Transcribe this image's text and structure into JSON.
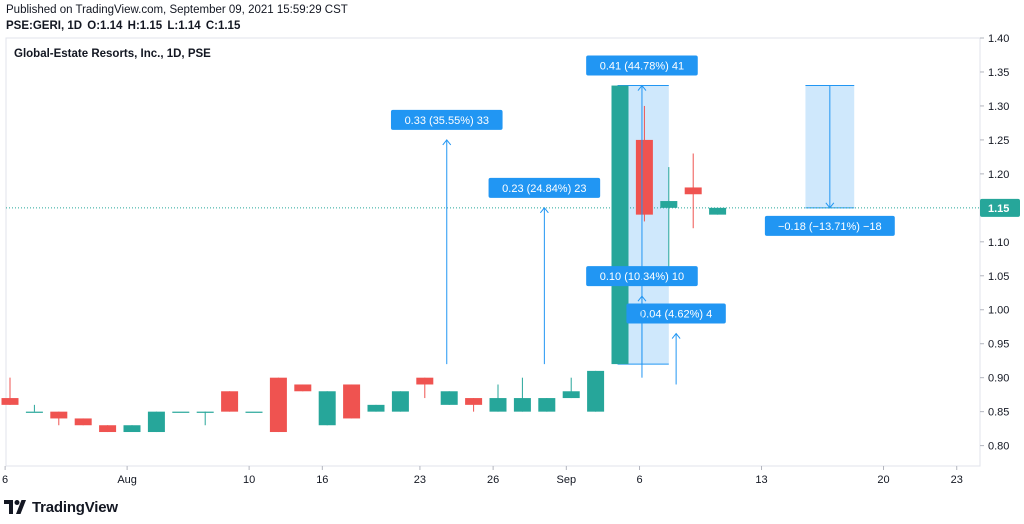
{
  "header": {
    "published": "Published on TradingView.com, September 09, 2021 15:59:29 CST",
    "symbol": "PSE:GERI, 1D",
    "o_label": "O:",
    "o_value": "1.14",
    "h_label": "H:",
    "h_value": "1.15",
    "l_label": "L:",
    "l_value": "1.14",
    "c_label": "C:",
    "c_value": "1.15"
  },
  "chart_data": {
    "type": "candlestick",
    "title": "Global-Estate Resorts, Inc., 1D, PSE",
    "colors": {
      "up": "#26a69a",
      "down": "#ef5350",
      "accent": "#2196f3",
      "range_fill": "#bbdefb",
      "price_line": "#26a69a"
    },
    "y_axis": {
      "ylim": [
        0.77,
        1.4
      ],
      "ticks": [
        "0.80",
        "0.85",
        "0.90",
        "0.95",
        "1.00",
        "1.05",
        "1.10",
        "1.15",
        "1.20",
        "1.25",
        "1.30",
        "1.35",
        "1.40"
      ],
      "position": "right"
    },
    "x_axis": {
      "ticks": [
        {
          "label": "6",
          "index": -0.2
        },
        {
          "label": "Aug",
          "index": 4.8
        },
        {
          "label": "10",
          "index": 9.8
        },
        {
          "label": "16",
          "index": 12.8
        },
        {
          "label": "23",
          "index": 16.8
        },
        {
          "label": "26",
          "index": 19.8
        },
        {
          "label": "Sep",
          "index": 22.8
        },
        {
          "label": "6",
          "index": 25.8
        },
        {
          "label": "13",
          "index": 30.8
        },
        {
          "label": "20",
          "index": 35.8
        },
        {
          "label": "23",
          "index": 38.8
        }
      ]
    },
    "last_price": "1.15",
    "candles": [
      {
        "o": 0.87,
        "h": 0.9,
        "l": 0.86,
        "c": 0.86
      },
      {
        "o": 0.85,
        "h": 0.86,
        "l": 0.85,
        "c": 0.85
      },
      {
        "o": 0.85,
        "h": 0.85,
        "l": 0.83,
        "c": 0.84
      },
      {
        "o": 0.84,
        "h": 0.84,
        "l": 0.83,
        "c": 0.83
      },
      {
        "o": 0.83,
        "h": 0.83,
        "l": 0.82,
        "c": 0.82
      },
      {
        "o": 0.82,
        "h": 0.83,
        "l": 0.82,
        "c": 0.83
      },
      {
        "o": 0.82,
        "h": 0.85,
        "l": 0.82,
        "c": 0.85
      },
      {
        "o": 0.85,
        "h": 0.85,
        "l": 0.85,
        "c": 0.85
      },
      {
        "o": 0.85,
        "h": 0.85,
        "l": 0.83,
        "c": 0.85
      },
      {
        "o": 0.88,
        "h": 0.88,
        "l": 0.85,
        "c": 0.85
      },
      {
        "o": 0.85,
        "h": 0.85,
        "l": 0.85,
        "c": 0.85
      },
      {
        "o": 0.9,
        "h": 0.9,
        "l": 0.82,
        "c": 0.82
      },
      {
        "o": 0.89,
        "h": 0.89,
        "l": 0.88,
        "c": 0.88
      },
      {
        "o": 0.83,
        "h": 0.88,
        "l": 0.83,
        "c": 0.88
      },
      {
        "o": 0.89,
        "h": 0.89,
        "l": 0.84,
        "c": 0.84
      },
      {
        "o": 0.85,
        "h": 0.86,
        "l": 0.85,
        "c": 0.86
      },
      {
        "o": 0.85,
        "h": 0.88,
        "l": 0.85,
        "c": 0.88
      },
      {
        "o": 0.9,
        "h": 0.9,
        "l": 0.87,
        "c": 0.89
      },
      {
        "o": 0.86,
        "h": 0.88,
        "l": 0.86,
        "c": 0.88
      },
      {
        "o": 0.87,
        "h": 0.87,
        "l": 0.85,
        "c": 0.86
      },
      {
        "o": 0.85,
        "h": 0.89,
        "l": 0.85,
        "c": 0.87
      },
      {
        "o": 0.85,
        "h": 0.9,
        "l": 0.85,
        "c": 0.87
      },
      {
        "o": 0.85,
        "h": 0.87,
        "l": 0.85,
        "c": 0.87
      },
      {
        "o": 0.87,
        "h": 0.9,
        "l": 0.87,
        "c": 0.88
      },
      {
        "o": 0.85,
        "h": 0.91,
        "l": 0.85,
        "c": 0.91
      },
      {
        "o": 0.92,
        "h": 1.33,
        "l": 0.92,
        "c": 1.33
      },
      {
        "o": 1.25,
        "h": 1.3,
        "l": 1.13,
        "c": 1.14
      },
      {
        "o": 1.15,
        "h": 1.21,
        "l": 1.06,
        "c": 1.16
      },
      {
        "o": 1.18,
        "h": 1.23,
        "l": 1.12,
        "c": 1.17
      },
      {
        "o": 1.14,
        "h": 1.15,
        "l": 1.14,
        "c": 1.15
      }
    ],
    "annotations": [
      {
        "label": "0.33 (35.55%) 33",
        "index": 17.9,
        "from": 0.92,
        "to": 1.25
      },
      {
        "label": "0.23 (24.84%) 23",
        "index": 21.9,
        "from": 0.92,
        "to": 1.15
      },
      {
        "label": "0.10 (10.34%) 10",
        "index": 25.9,
        "from": 0.9,
        "to": 1.02
      },
      {
        "label": "0.04 (4.62%) 4",
        "index": 27.3,
        "from": 0.89,
        "to": 0.965
      },
      {
        "label": "0.41 (44.78%) 41",
        "index": 25.9,
        "from": 0.92,
        "to": 1.33,
        "box_from_index": 24.9,
        "box_to_index": 27.0
      },
      {
        "label": "−0.18 (−13.71%) −18",
        "index": 33.6,
        "from": 1.33,
        "to": 1.15,
        "box_from_index": 32.6,
        "box_to_index": 34.6
      }
    ]
  },
  "footer": {
    "brand": "TradingView"
  }
}
